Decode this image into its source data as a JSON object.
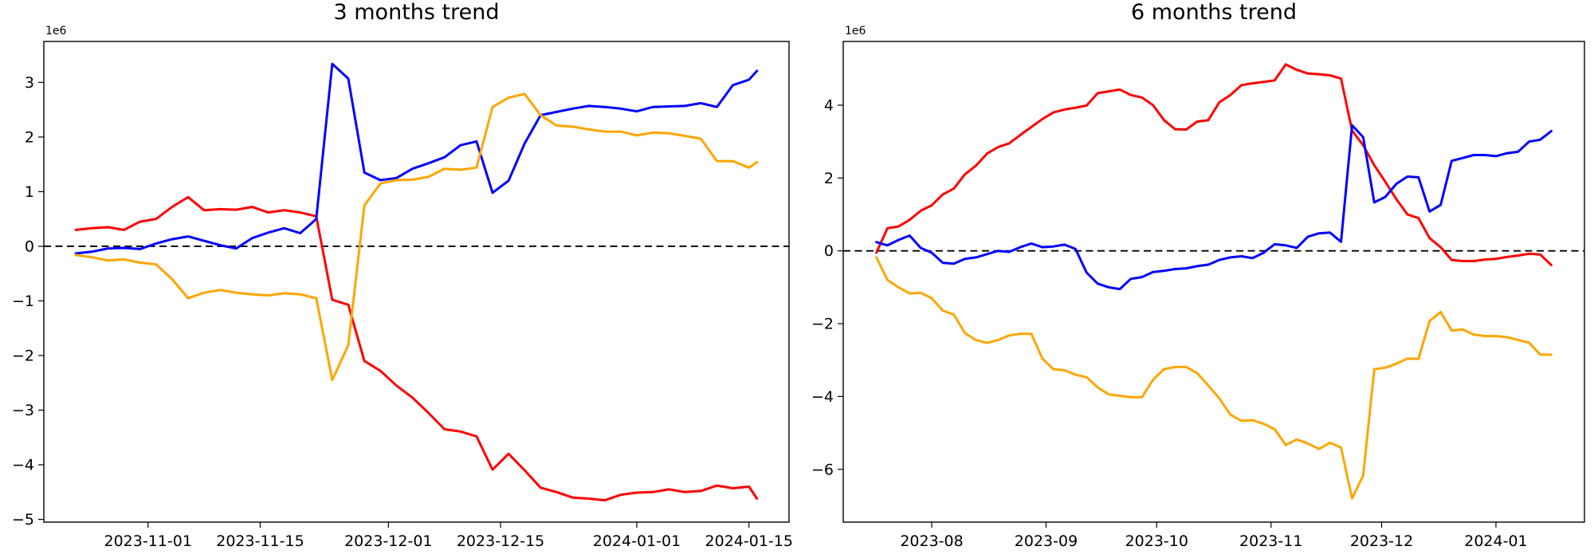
{
  "figure": {
    "background": "#ffffff",
    "axis_color": "#000000",
    "zero_line_style": "dashed-black"
  },
  "chart_data": [
    {
      "type": "line",
      "title": "3 months trend",
      "offset_label": "1e6",
      "value_unit": 1000000,
      "grid": false,
      "legend": "none",
      "xdomain": [
        "2023-10-19",
        "2024-01-20"
      ],
      "ylim": [
        -5.05,
        3.75
      ],
      "yticks": [
        -5,
        -4,
        -3,
        -2,
        -1,
        0,
        1,
        2,
        3
      ],
      "xticks": [
        {
          "d": "2023-11-01",
          "label": "2023-11-01"
        },
        {
          "d": "2023-11-15",
          "label": "2023-11-15"
        },
        {
          "d": "2023-12-01",
          "label": "2023-12-01"
        },
        {
          "d": "2023-12-15",
          "label": "2023-12-15"
        },
        {
          "d": "2024-01-01",
          "label": "2024-01-01"
        },
        {
          "d": "2024-01-15",
          "label": "2024-01-15"
        }
      ],
      "zero_line": true,
      "x": [
        "2023-10-23",
        "2023-10-25",
        "2023-10-27",
        "2023-10-29",
        "2023-10-31",
        "2023-11-02",
        "2023-11-04",
        "2023-11-06",
        "2023-11-08",
        "2023-11-10",
        "2023-11-12",
        "2023-11-14",
        "2023-11-16",
        "2023-11-18",
        "2023-11-20",
        "2023-11-22",
        "2023-11-24",
        "2023-11-26",
        "2023-11-28",
        "2023-11-30",
        "2023-12-02",
        "2023-12-04",
        "2023-12-06",
        "2023-12-08",
        "2023-12-10",
        "2023-12-12",
        "2023-12-14",
        "2023-12-16",
        "2023-12-18",
        "2023-12-20",
        "2023-12-22",
        "2023-12-24",
        "2023-12-26",
        "2023-12-28",
        "2023-12-30",
        "2024-01-01",
        "2024-01-03",
        "2024-01-05",
        "2024-01-07",
        "2024-01-09",
        "2024-01-11",
        "2024-01-13",
        "2024-01-15",
        "2024-01-16"
      ],
      "series": [
        {
          "name": "red",
          "color": "#ff0000",
          "values": [
            0.3,
            0.33,
            0.35,
            0.3,
            0.45,
            0.5,
            0.72,
            0.9,
            0.66,
            0.68,
            0.67,
            0.72,
            0.62,
            0.66,
            0.62,
            0.55,
            -0.98,
            -1.07,
            -2.1,
            -2.28,
            -2.55,
            -2.77,
            -3.05,
            -3.35,
            -3.39,
            -3.48,
            -4.09,
            -3.8,
            -4.1,
            -4.42,
            -4.5,
            -4.6,
            -4.62,
            -4.65,
            -4.55,
            -4.51,
            -4.5,
            -4.45,
            -4.5,
            -4.48,
            -4.38,
            -4.43,
            -4.4,
            -4.62
          ]
        },
        {
          "name": "blue",
          "color": "#0000ff",
          "values": [
            -0.13,
            -0.1,
            -0.04,
            -0.03,
            -0.05,
            0.05,
            0.13,
            0.18,
            0.1,
            0.02,
            -0.04,
            0.15,
            0.25,
            0.33,
            0.24,
            0.5,
            3.34,
            3.07,
            1.35,
            1.21,
            1.25,
            1.42,
            1.52,
            1.63,
            1.85,
            1.92,
            0.98,
            1.2,
            1.88,
            2.4,
            2.46,
            2.52,
            2.57,
            2.55,
            2.52,
            2.47,
            2.55,
            2.56,
            2.57,
            2.62,
            2.55,
            2.95,
            3.05,
            3.21
          ]
        },
        {
          "name": "orange",
          "color": "#ffa500",
          "values": [
            -0.16,
            -0.2,
            -0.26,
            -0.24,
            -0.3,
            -0.33,
            -0.6,
            -0.95,
            -0.85,
            -0.8,
            -0.85,
            -0.88,
            -0.9,
            -0.86,
            -0.88,
            -0.95,
            -2.45,
            -1.81,
            0.75,
            1.15,
            1.21,
            1.22,
            1.27,
            1.42,
            1.4,
            1.44,
            2.55,
            2.72,
            2.79,
            2.4,
            2.21,
            2.19,
            2.14,
            2.1,
            2.1,
            2.03,
            2.08,
            2.07,
            2.02,
            1.97,
            1.56,
            1.56,
            1.44,
            1.54
          ]
        }
      ]
    },
    {
      "type": "line",
      "title": "6 months trend",
      "offset_label": "1e6",
      "value_unit": 1000000,
      "grid": false,
      "legend": "none",
      "xdomain": [
        "2023-07-08",
        "2024-01-25"
      ],
      "ylim": [
        -7.45,
        5.75
      ],
      "yticks": [
        -6,
        -4,
        -2,
        0,
        2,
        4
      ],
      "xticks": [
        {
          "d": "2023-08-01",
          "label": "2023-08"
        },
        {
          "d": "2023-09-01",
          "label": "2023-09"
        },
        {
          "d": "2023-10-01",
          "label": "2023-10"
        },
        {
          "d": "2023-11-01",
          "label": "2023-11"
        },
        {
          "d": "2023-12-01",
          "label": "2023-12"
        },
        {
          "d": "2024-01-01",
          "label": "2024-01"
        }
      ],
      "zero_line": true,
      "x": [
        "2023-07-17",
        "2023-07-20",
        "2023-07-23",
        "2023-07-26",
        "2023-07-29",
        "2023-08-01",
        "2023-08-04",
        "2023-08-07",
        "2023-08-10",
        "2023-08-13",
        "2023-08-16",
        "2023-08-19",
        "2023-08-22",
        "2023-08-25",
        "2023-08-28",
        "2023-08-31",
        "2023-09-03",
        "2023-09-06",
        "2023-09-09",
        "2023-09-12",
        "2023-09-15",
        "2023-09-18",
        "2023-09-21",
        "2023-09-24",
        "2023-09-27",
        "2023-09-30",
        "2023-10-03",
        "2023-10-06",
        "2023-10-09",
        "2023-10-12",
        "2023-10-15",
        "2023-10-18",
        "2023-10-21",
        "2023-10-24",
        "2023-10-27",
        "2023-10-30",
        "2023-11-02",
        "2023-11-05",
        "2023-11-08",
        "2023-11-11",
        "2023-11-14",
        "2023-11-17",
        "2023-11-20",
        "2023-11-23",
        "2023-11-26",
        "2023-11-29",
        "2023-12-02",
        "2023-12-05",
        "2023-12-08",
        "2023-12-11",
        "2023-12-14",
        "2023-12-17",
        "2023-12-20",
        "2023-12-23",
        "2023-12-26",
        "2023-12-29",
        "2024-01-01",
        "2024-01-04",
        "2024-01-07",
        "2024-01-10",
        "2024-01-13",
        "2024-01-16"
      ],
      "series": [
        {
          "name": "red",
          "color": "#ff0000",
          "values": [
            -0.05,
            0.62,
            0.67,
            0.85,
            1.1,
            1.25,
            1.55,
            1.71,
            2.1,
            2.34,
            2.67,
            2.85,
            2.95,
            3.18,
            3.4,
            3.62,
            3.8,
            3.88,
            3.93,
            3.99,
            4.33,
            4.38,
            4.43,
            4.28,
            4.21,
            4.0,
            3.59,
            3.34,
            3.33,
            3.55,
            3.59,
            4.08,
            4.28,
            4.55,
            4.6,
            4.64,
            4.68,
            5.12,
            4.97,
            4.87,
            4.85,
            4.82,
            4.73,
            3.3,
            2.9,
            2.35,
            1.9,
            1.42,
            1.0,
            0.9,
            0.35,
            0.1,
            -0.25,
            -0.28,
            -0.28,
            -0.24,
            -0.22,
            -0.17,
            -0.13,
            -0.08,
            -0.1,
            -0.39
          ]
        },
        {
          "name": "blue",
          "color": "#0000ff",
          "values": [
            0.24,
            0.15,
            0.3,
            0.42,
            0.08,
            -0.05,
            -0.33,
            -0.35,
            -0.22,
            -0.18,
            -0.09,
            0.0,
            -0.03,
            0.1,
            0.2,
            0.1,
            0.12,
            0.17,
            0.05,
            -0.6,
            -0.9,
            -1.0,
            -1.05,
            -0.77,
            -0.72,
            -0.58,
            -0.55,
            -0.5,
            -0.48,
            -0.42,
            -0.38,
            -0.25,
            -0.18,
            -0.15,
            -0.2,
            -0.05,
            0.18,
            0.15,
            0.08,
            0.39,
            0.48,
            0.5,
            0.25,
            3.45,
            3.12,
            1.33,
            1.48,
            1.84,
            2.04,
            2.02,
            1.08,
            1.26,
            2.47,
            2.55,
            2.63,
            2.63,
            2.6,
            2.68,
            2.72,
            3.0,
            3.05,
            3.29
          ]
        },
        {
          "name": "orange",
          "color": "#ffa500",
          "values": [
            -0.18,
            -0.8,
            -1.0,
            -1.17,
            -1.15,
            -1.3,
            -1.64,
            -1.75,
            -2.26,
            -2.45,
            -2.53,
            -2.45,
            -2.32,
            -2.28,
            -2.28,
            -2.96,
            -3.25,
            -3.28,
            -3.4,
            -3.47,
            -3.75,
            -3.94,
            -3.98,
            -4.02,
            -4.02,
            -3.54,
            -3.25,
            -3.19,
            -3.19,
            -3.36,
            -3.7,
            -4.05,
            -4.5,
            -4.67,
            -4.65,
            -4.75,
            -4.9,
            -5.33,
            -5.18,
            -5.29,
            -5.44,
            -5.27,
            -5.4,
            -6.8,
            -6.17,
            -3.25,
            -3.21,
            -3.1,
            -2.96,
            -2.97,
            -1.93,
            -1.68,
            -2.19,
            -2.16,
            -2.3,
            -2.34,
            -2.34,
            -2.37,
            -2.45,
            -2.52,
            -2.85,
            -2.85
          ]
        }
      ]
    }
  ]
}
